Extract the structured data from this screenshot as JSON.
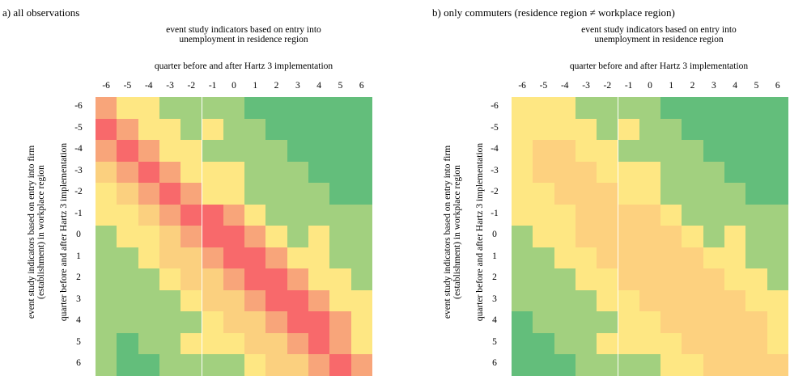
{
  "colors": {
    "0": "#63be7b",
    "1": "#a2d07f",
    "2": "#fee783",
    "3": "#fbd07f",
    "4": "#f8a57a",
    "5": "#f8696b",
    "6": "#fcb279",
    "7": "#fdd17f"
  },
  "chart_data": [
    {
      "type": "heatmap",
      "title": "a) all observations",
      "xlabel": "event study indicators based on entry into unemployment in residence region",
      "xsub": "quarter before and after Hartz 3 implementation",
      "ylabel": "event study indicators based on entry into firm (establishment) in workplace region",
      "ysub": "quarter before and after Hartz 3 implementation",
      "x": [
        "-6",
        "-5",
        "-4",
        "-3",
        "-2",
        "-1",
        "0",
        "1",
        "2",
        "3",
        "4",
        "5",
        "6"
      ],
      "y": [
        "-6",
        "-5",
        "-4",
        "-3",
        "-2",
        "-1",
        "0",
        "1",
        "2",
        "3",
        "4",
        "5",
        "6"
      ],
      "legend": "none",
      "matrix": [
        [
          4,
          2,
          2,
          1,
          1,
          1,
          1,
          0,
          0,
          0,
          0,
          0,
          0
        ],
        [
          5,
          4,
          2,
          2,
          1,
          2,
          1,
          1,
          0,
          0,
          0,
          0,
          0
        ],
        [
          4,
          5,
          4,
          2,
          2,
          1,
          1,
          1,
          1,
          0,
          0,
          0,
          0
        ],
        [
          3,
          4,
          5,
          4,
          2,
          2,
          2,
          1,
          1,
          1,
          0,
          0,
          0
        ],
        [
          2,
          3,
          4,
          5,
          4,
          2,
          2,
          1,
          1,
          1,
          1,
          0,
          0
        ],
        [
          2,
          2,
          3,
          4,
          5,
          5,
          4,
          2,
          1,
          1,
          1,
          1,
          1
        ],
        [
          1,
          2,
          2,
          3,
          4,
          5,
          5,
          4,
          2,
          1,
          2,
          1,
          1
        ],
        [
          1,
          1,
          2,
          3,
          3,
          4,
          5,
          5,
          4,
          2,
          2,
          1,
          1
        ],
        [
          1,
          1,
          1,
          2,
          3,
          3,
          4,
          5,
          5,
          4,
          2,
          2,
          1
        ],
        [
          1,
          1,
          1,
          1,
          2,
          3,
          3,
          4,
          5,
          5,
          4,
          2,
          2
        ],
        [
          1,
          1,
          1,
          1,
          1,
          2,
          3,
          3,
          4,
          5,
          5,
          4,
          2
        ],
        [
          1,
          0,
          1,
          1,
          2,
          2,
          2,
          3,
          3,
          4,
          5,
          4,
          2
        ],
        [
          1,
          0,
          0,
          1,
          1,
          1,
          1,
          2,
          3,
          3,
          4,
          5,
          4
        ]
      ]
    },
    {
      "type": "heatmap",
      "title": "b) only commuters (residence region ≠ workplace region)",
      "xlabel": "event study indicators based on entry into unemployment in residence region",
      "xsub": "quarter before and after Hartz 3 implementation",
      "ylabel": "event study indicators based on entry into firm (establishment) in workplace region",
      "ysub": "quarter before and after Hartz 3 implementation",
      "x": [
        "-6",
        "-5",
        "-4",
        "-3",
        "-2",
        "-1",
        "0",
        "1",
        "2",
        "3",
        "4",
        "5",
        "6"
      ],
      "y": [
        "-6",
        "-5",
        "-4",
        "-3",
        "-2",
        "-1",
        "0",
        "1",
        "2",
        "3",
        "4",
        "5",
        "6"
      ],
      "legend": "none",
      "matrix": [
        [
          2,
          2,
          2,
          1,
          1,
          1,
          1,
          0,
          0,
          0,
          0,
          0,
          0
        ],
        [
          2,
          2,
          2,
          2,
          1,
          2,
          1,
          1,
          0,
          0,
          0,
          0,
          0
        ],
        [
          2,
          7,
          7,
          2,
          2,
          1,
          1,
          1,
          1,
          0,
          0,
          0,
          0
        ],
        [
          2,
          7,
          7,
          7,
          2,
          2,
          2,
          1,
          1,
          1,
          0,
          0,
          0
        ],
        [
          2,
          2,
          7,
          7,
          7,
          2,
          2,
          1,
          1,
          1,
          1,
          0,
          0
        ],
        [
          2,
          2,
          2,
          7,
          7,
          7,
          7,
          2,
          1,
          1,
          1,
          1,
          1
        ],
        [
          1,
          2,
          2,
          7,
          7,
          7,
          7,
          7,
          2,
          1,
          2,
          1,
          1
        ],
        [
          1,
          1,
          2,
          2,
          7,
          7,
          7,
          7,
          7,
          2,
          2,
          1,
          1
        ],
        [
          1,
          1,
          1,
          2,
          2,
          7,
          7,
          7,
          7,
          7,
          2,
          2,
          1
        ],
        [
          1,
          1,
          1,
          1,
          2,
          2,
          7,
          7,
          7,
          7,
          7,
          2,
          2
        ],
        [
          0,
          1,
          1,
          1,
          1,
          2,
          2,
          7,
          7,
          7,
          7,
          7,
          2
        ],
        [
          0,
          0,
          1,
          1,
          2,
          2,
          2,
          2,
          7,
          7,
          7,
          7,
          2
        ],
        [
          0,
          0,
          0,
          1,
          1,
          1,
          1,
          2,
          2,
          7,
          7,
          7,
          7
        ]
      ]
    }
  ]
}
